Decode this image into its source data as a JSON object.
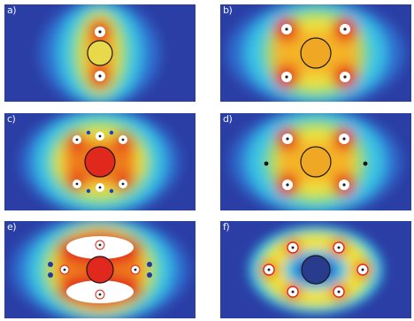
{
  "panels": {
    "a": {
      "label": "a)"
    },
    "b": {
      "label": "b)"
    },
    "c": {
      "label": "c)"
    },
    "d": {
      "label": "d)"
    },
    "e": {
      "label": "e)"
    },
    "f": {
      "label": "f)"
    }
  },
  "colors": {
    "background": "#2c3fa6",
    "cyan": "#37c6e6",
    "green": "#7bd86a",
    "yellow": "#f2e63a",
    "orange": "#f59a1e",
    "red": "#e2241c",
    "center_dark": "#273a8c"
  }
}
